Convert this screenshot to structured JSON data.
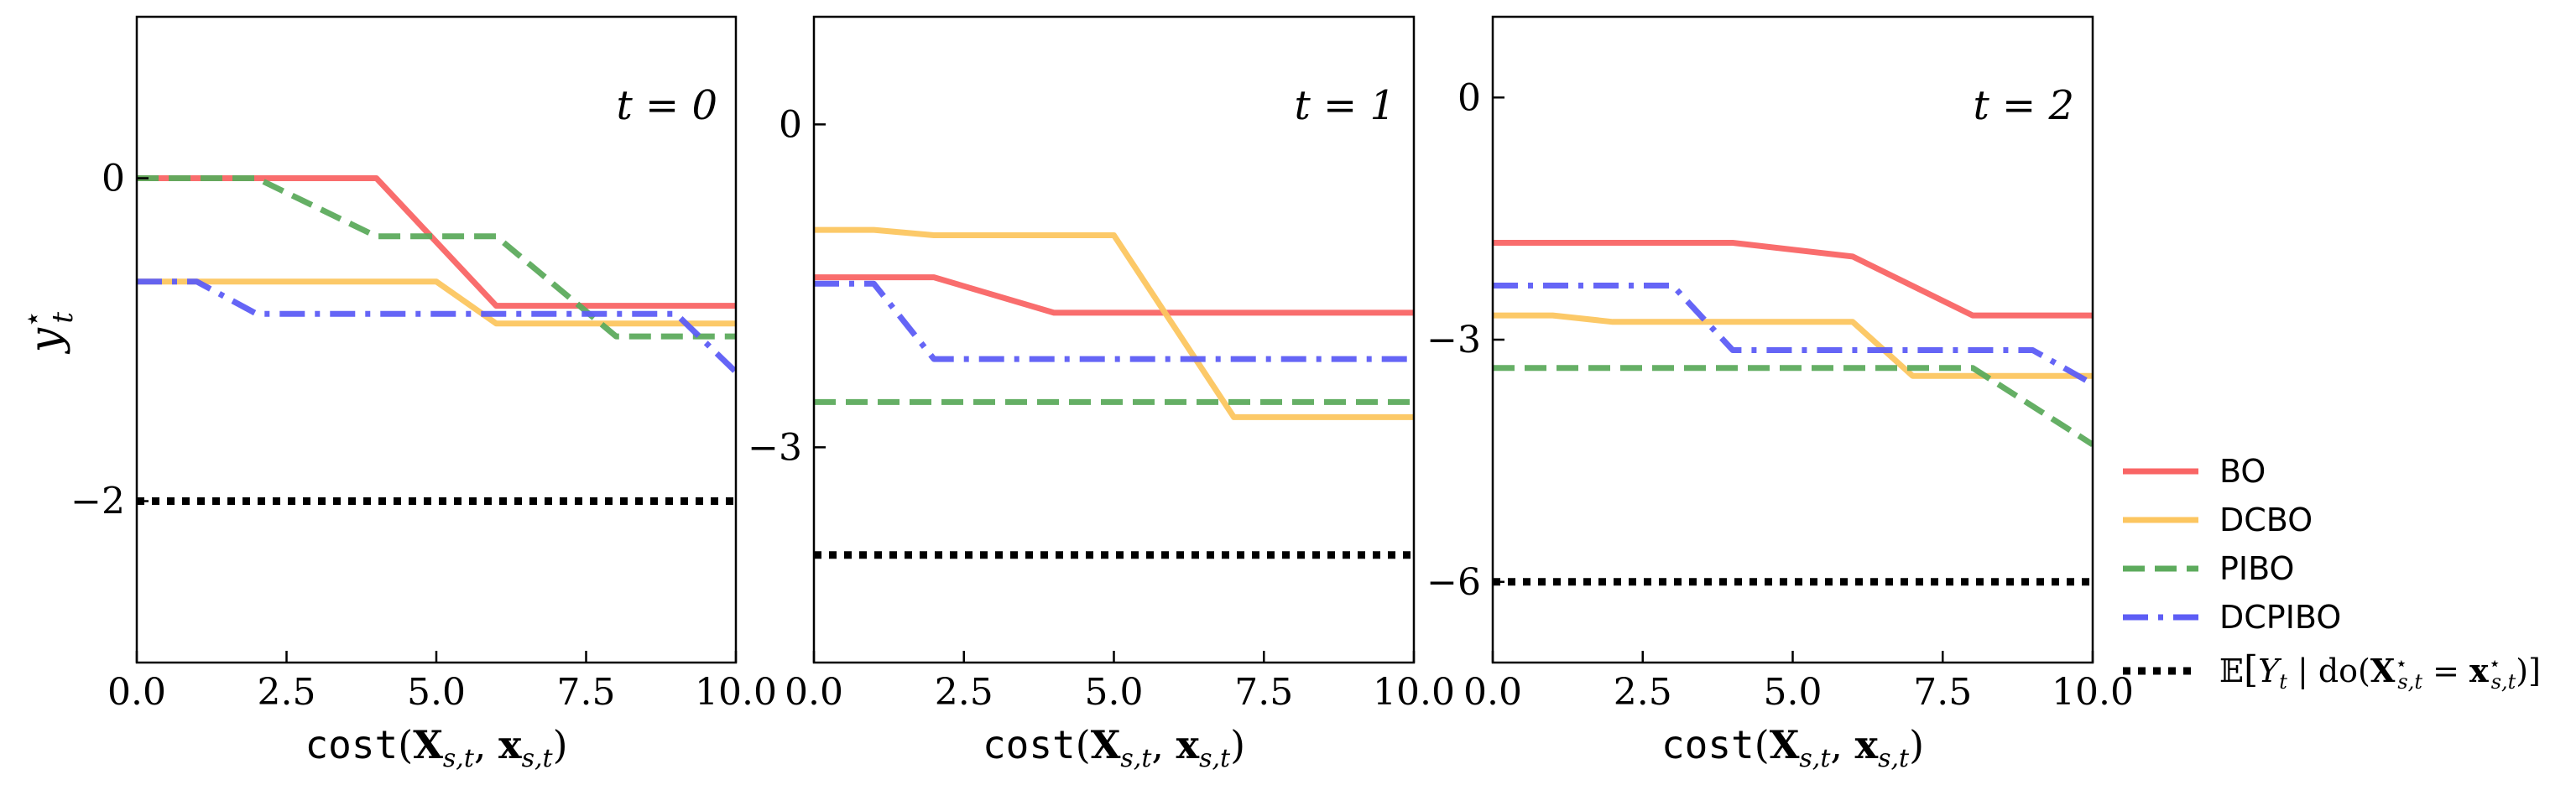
{
  "chart_data": {
    "type": "line",
    "shared_xlabel_parts": [
      "cost",
      "(",
      "X",
      "s,t",
      ", ",
      "x",
      "s,t",
      ")"
    ],
    "ylabel": {
      "base": "y",
      "sup": "⋆",
      "sub": "t"
    },
    "legend": {
      "placement": "right-bottom",
      "entries": [
        {
          "key": "BO",
          "label": "BO",
          "color": "#f96565",
          "style": "solid"
        },
        {
          "key": "DCBO",
          "label": "DCBO",
          "color": "#fcc660",
          "style": "solid"
        },
        {
          "key": "PIBO",
          "label": "PIBO",
          "color": "#5dab5d",
          "style": "dashed"
        },
        {
          "key": "DCPIBO",
          "label": "DCPIBO",
          "color": "#5d5df5",
          "style": "dashdot"
        },
        {
          "key": "GT",
          "label_parts": [
            "𝔼",
            "[",
            "Y",
            "t",
            " | do(",
            "X",
            "⋆",
            "s,t",
            " = ",
            "x",
            "⋆",
            "s,t",
            ")]"
          ],
          "color": "#000000",
          "style": "dotted"
        }
      ]
    },
    "panels": [
      {
        "id": "t0",
        "label": "t = 0",
        "xlim": [
          0,
          10
        ],
        "ylim": [
          -3,
          1
        ],
        "xticks": [
          0,
          2.5,
          5,
          7.5,
          10
        ],
        "xtick_labels": [
          "0.0",
          "2.5",
          "5.0",
          "7.5",
          "10.0"
        ],
        "yticks": [
          0,
          -2
        ],
        "ytick_labels": [
          "0",
          "−2"
        ],
        "show_ylabel": true,
        "series": [
          {
            "key": "BO",
            "x": [
              0,
              4,
              6,
              10
            ],
            "y": [
              0,
              0,
              -0.79,
              -0.79
            ]
          },
          {
            "key": "DCBO",
            "x": [
              0,
              5,
              6,
              10
            ],
            "y": [
              -0.64,
              -0.64,
              -0.9,
              -0.9
            ]
          },
          {
            "key": "PIBO",
            "x": [
              0,
              2,
              4,
              6,
              8,
              10
            ],
            "y": [
              0,
              0,
              -0.36,
              -0.36,
              -0.98,
              -0.98
            ]
          },
          {
            "key": "DCPIBO",
            "x": [
              0,
              1,
              2,
              9,
              10
            ],
            "y": [
              -0.64,
              -0.64,
              -0.84,
              -0.84,
              -1.2
            ]
          },
          {
            "key": "GT",
            "x": [
              0,
              10
            ],
            "y": [
              -2,
              -2
            ]
          }
        ]
      },
      {
        "id": "t1",
        "label": "t = 1",
        "xlim": [
          0,
          10
        ],
        "ylim": [
          -5,
          1
        ],
        "xticks": [
          0,
          2.5,
          5,
          7.5,
          10
        ],
        "xtick_labels": [
          "0.0",
          "2.5",
          "5.0",
          "7.5",
          "10.0"
        ],
        "yticks": [
          0,
          -3
        ],
        "ytick_labels": [
          "0",
          "−3"
        ],
        "show_ylabel": false,
        "series": [
          {
            "key": "BO",
            "x": [
              0,
              2,
              4,
              10
            ],
            "y": [
              -1.42,
              -1.42,
              -1.75,
              -1.75
            ]
          },
          {
            "key": "DCBO",
            "x": [
              0,
              1,
              2,
              5,
              7,
              10
            ],
            "y": [
              -0.98,
              -0.98,
              -1.03,
              -1.03,
              -2.72,
              -2.72
            ]
          },
          {
            "key": "PIBO",
            "x": [
              0,
              10
            ],
            "y": [
              -2.58,
              -2.58
            ]
          },
          {
            "key": "DCPIBO",
            "x": [
              0,
              1,
              2,
              10
            ],
            "y": [
              -1.48,
              -1.48,
              -2.18,
              -2.18
            ]
          },
          {
            "key": "GT",
            "x": [
              0,
              10
            ],
            "y": [
              -4.0,
              -4.0
            ]
          }
        ]
      },
      {
        "id": "t2",
        "label": "t = 2",
        "xlim": [
          0,
          10
        ],
        "ylim": [
          -7,
          1
        ],
        "xticks": [
          0,
          2.5,
          5,
          7.5,
          10
        ],
        "xtick_labels": [
          "0.0",
          "2.5",
          "5.0",
          "7.5",
          "10.0"
        ],
        "yticks": [
          0,
          -3,
          -6
        ],
        "ytick_labels": [
          "0",
          "−3",
          "−6"
        ],
        "show_ylabel": false,
        "series": [
          {
            "key": "BO",
            "x": [
              0,
              4,
              6,
              8,
              10
            ],
            "y": [
              -1.8,
              -1.8,
              -1.97,
              -2.7,
              -2.7
            ]
          },
          {
            "key": "DCBO",
            "x": [
              0,
              1,
              2,
              6,
              7,
              8,
              10
            ],
            "y": [
              -2.7,
              -2.7,
              -2.78,
              -2.78,
              -3.45,
              -3.45,
              -3.45
            ]
          },
          {
            "key": "PIBO",
            "x": [
              0,
              8,
              10
            ],
            "y": [
              -3.35,
              -3.35,
              -4.3
            ]
          },
          {
            "key": "DCPIBO",
            "x": [
              0,
              3,
              4,
              9,
              10
            ],
            "y": [
              -2.33,
              -2.33,
              -3.13,
              -3.13,
              -3.55
            ]
          },
          {
            "key": "GT",
            "x": [
              0,
              10
            ],
            "y": [
              -6.0,
              -6.0
            ]
          }
        ]
      }
    ]
  }
}
